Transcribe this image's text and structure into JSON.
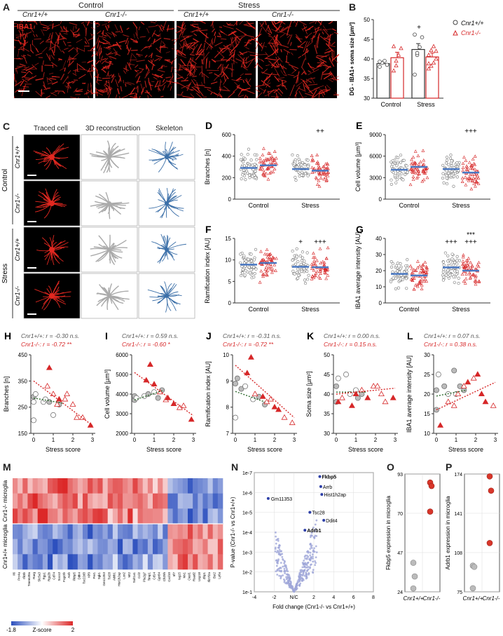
{
  "panel_letters": [
    "A",
    "B",
    "C",
    "D",
    "E",
    "F",
    "G",
    "H",
    "I",
    "J",
    "K",
    "L",
    "M",
    "N",
    "O",
    "P"
  ],
  "panelA": {
    "group_control": "Control",
    "group_stress": "Stress",
    "col_labels": [
      "Cnr1+/+",
      "Cnr1-/-",
      "Cnr1+/+",
      "Cnr1-/-"
    ],
    "stain_label": "IBA1"
  },
  "panelB": {
    "ylabel": "DG - IBA1+ soma size [µm²]",
    "yticks": [
      "30",
      "35",
      "40",
      "45",
      "50"
    ],
    "ylim": [
      30,
      50
    ],
    "categories": [
      "Control",
      "Stress"
    ],
    "legend": [
      "Cnr1+/+",
      "Cnr1-/-"
    ],
    "annot": "+",
    "chart_data": {
      "type": "bar",
      "categories": [
        "Control",
        "Stress"
      ],
      "series": [
        {
          "name": "Cnr1+/+",
          "values": [
            38.8,
            42.4
          ],
          "sem": [
            0.5,
            1.5
          ],
          "points": [
            [
              38,
              39,
              39.5,
              38.5,
              39.3
            ],
            [
              36,
              41,
              43,
              45.5,
              46.2,
              41.5
            ]
          ]
        },
        {
          "name": "Cnr1-/-",
          "values": [
            40.3,
            40.5
          ],
          "sem": [
            1.4,
            1.0
          ],
          "points": [
            [
              37,
              38.3,
              41,
              42.7,
              43.2,
              39.5
            ],
            [
              37.5,
              38.2,
              39,
              40,
              41,
              42.2,
              43.2,
              42,
              38.8
            ]
          ]
        }
      ],
      "ylabel": "DG - IBA1+ soma size [µm²]",
      "ylim": [
        30,
        50
      ]
    }
  },
  "panelC": {
    "headers": [
      "Traced cell",
      "3D reconstruction",
      "Skeleton"
    ],
    "groups": [
      "Control",
      "Stress"
    ],
    "row_labels": [
      "Cnr1+/+",
      "Cnr1-/-",
      "Cnr1+/+",
      "Cnr1-/-"
    ]
  },
  "scatterPanels": [
    {
      "id": "D",
      "ylabel": "Branches [n]",
      "yticks": [
        "0",
        "200",
        "400",
        "600"
      ],
      "ylim": [
        0,
        600
      ],
      "means": [
        290,
        315,
        280,
        265
      ],
      "annot_stress": "++",
      "annot_stress2": ""
    },
    {
      "id": "E",
      "ylabel": "Cell volume [µm³]",
      "yticks": [
        "0",
        "3000",
        "6000",
        "9000"
      ],
      "ylim": [
        0,
        9000
      ],
      "means": [
        4100,
        4500,
        4200,
        3700
      ],
      "annot_stress": "+++",
      "annot_stress2": ""
    },
    {
      "id": "F",
      "ylabel": "Ramification index [AU]",
      "yticks": [
        "0",
        "5",
        "10",
        "15"
      ],
      "ylim": [
        0,
        15
      ],
      "means": [
        8.9,
        9.3,
        8.4,
        8.3
      ],
      "annot_stress": "+",
      "annot_stress2": "+++"
    },
    {
      "id": "G",
      "ylabel": "IBA1 average intensity [AU]",
      "yticks": [
        "0",
        "10",
        "20",
        "30",
        "40"
      ],
      "ylim": [
        0,
        40
      ],
      "means": [
        18,
        17,
        22,
        20
      ],
      "annot_stress": "+++",
      "annot_stress2": "***\n+++"
    }
  ],
  "scatter_categories": [
    "Control",
    "Stress"
  ],
  "corrPanels": [
    {
      "id": "H",
      "wt": "Cnr1+/+: r = -0.30 n.s.",
      "ko": "Cnr1-/-: r = -0.72 **",
      "ylabel": "Branches [n]",
      "yticks": [
        "150",
        "250",
        "350",
        "450"
      ],
      "ylim": [
        150,
        450
      ],
      "wt_line": [
        [
          0,
          285
        ],
        [
          1.5,
          265
        ]
      ],
      "ko_line": [
        [
          0,
          350
        ],
        [
          3,
          180
        ]
      ],
      "wt_pts": [
        [
          0,
          200
        ],
        [
          0,
          270
        ],
        [
          0,
          290
        ],
        [
          0.1,
          300
        ],
        [
          0.5,
          270
        ],
        [
          0.6,
          280
        ],
        [
          0.8,
          270
        ],
        [
          1,
          220
        ],
        [
          1.3,
          260
        ]
      ],
      "ko_pts": [
        [
          0.7,
          330
        ],
        [
          0.8,
          400
        ],
        [
          1,
          300
        ],
        [
          1.2,
          260
        ],
        [
          1.3,
          280
        ],
        [
          1.6,
          280
        ],
        [
          1.7,
          300
        ],
        [
          2,
          260
        ],
        [
          2.2,
          210
        ],
        [
          2.5,
          210
        ],
        [
          2.9,
          180
        ]
      ]
    },
    {
      "id": "I",
      "wt": "Cnr1+/+: r = 0.59 n.s.",
      "ko": "Cnr1-/-: r = -0.60 *",
      "ylabel": "Cell volume [µm³]",
      "yticks": [
        "2000",
        "3000",
        "4000",
        "5000",
        "6000"
      ],
      "ylim": [
        2000,
        6000
      ],
      "wt_line": [
        [
          0,
          3700
        ],
        [
          1.5,
          4200
        ]
      ],
      "ko_line": [
        [
          0,
          5100
        ],
        [
          3,
          2900
        ]
      ],
      "wt_pts": [
        [
          0,
          3700
        ],
        [
          0,
          3900
        ],
        [
          0.1,
          3800
        ],
        [
          0.5,
          3900
        ],
        [
          0.7,
          4000
        ],
        [
          1,
          4100
        ],
        [
          1.2,
          3800
        ],
        [
          1.4,
          4200
        ]
      ],
      "ko_pts": [
        [
          0.6,
          4700
        ],
        [
          0.8,
          5500
        ],
        [
          1,
          4500
        ],
        [
          1.3,
          4100
        ],
        [
          1.6,
          3700
        ],
        [
          1.7,
          3800
        ],
        [
          2,
          3500
        ],
        [
          2.3,
          3300
        ],
        [
          2.5,
          3400
        ],
        [
          2.9,
          2700
        ]
      ]
    },
    {
      "id": "J",
      "wt": "Cnr1+/+: r = -0.31 n.s.",
      "ko": "Cnr1-/-: r = -0.72 **",
      "ylabel": "Ramification index [AU]",
      "yticks": [
        "7",
        "8",
        "9",
        "10"
      ],
      "ylim": [
        7,
        10
      ],
      "wt_line": [
        [
          0,
          8.6
        ],
        [
          1.5,
          8.2
        ]
      ],
      "ko_line": [
        [
          0,
          9.6
        ],
        [
          3,
          7.6
        ]
      ],
      "wt_pts": [
        [
          0,
          7.6
        ],
        [
          0,
          8.9
        ],
        [
          0.1,
          9.1
        ],
        [
          0.3,
          8.7
        ],
        [
          0.5,
          8.8
        ],
        [
          0.9,
          8.3
        ],
        [
          1.2,
          8.4
        ],
        [
          1.5,
          8.1
        ]
      ],
      "ko_pts": [
        [
          0.6,
          9.3
        ],
        [
          0.8,
          9.9
        ],
        [
          1,
          8.5
        ],
        [
          1.4,
          8.4
        ],
        [
          1.6,
          8.2
        ],
        [
          1.8,
          8.3
        ],
        [
          2,
          8.0
        ],
        [
          2.2,
          7.9
        ],
        [
          2.5,
          7.6
        ],
        [
          2.9,
          7.4
        ]
      ]
    },
    {
      "id": "K",
      "wt": "Cnr1+/+: r = 0.00 n.s.",
      "ko": "Cnr1-/-: r = 0.15 n.s.",
      "ylabel": "Soma size [µm²]",
      "yticks": [
        "30",
        "35",
        "40",
        "45",
        "50"
      ],
      "ylim": [
        30,
        50
      ],
      "wt_line": [
        [
          0,
          40.5
        ],
        [
          1.5,
          40.5
        ]
      ],
      "ko_line": [
        [
          0,
          40
        ],
        [
          3,
          41.5
        ]
      ],
      "wt_pts": [
        [
          0,
          38
        ],
        [
          0,
          42
        ],
        [
          0.1,
          44
        ],
        [
          0.5,
          45
        ],
        [
          0.7,
          40
        ],
        [
          1,
          41
        ],
        [
          1.1,
          39
        ],
        [
          1.3,
          40
        ]
      ],
      "ko_pts": [
        [
          0.1,
          38
        ],
        [
          0.3,
          39
        ],
        [
          0.8,
          37
        ],
        [
          1,
          40
        ],
        [
          1.3,
          41
        ],
        [
          1.6,
          39
        ],
        [
          1.9,
          42
        ],
        [
          2.1,
          42
        ],
        [
          2.3,
          40
        ],
        [
          2.5,
          38
        ],
        [
          2.9,
          39
        ]
      ]
    },
    {
      "id": "L",
      "wt": "Cnr1+/+: r = 0.07 n.s.",
      "ko": "Cnr1-/-: r = 0.38 n.s.",
      "ylabel": "IBA1 average intensity [AU]",
      "yticks": [
        "10",
        "15",
        "20",
        "25",
        "30"
      ],
      "ylim": [
        10,
        30
      ],
      "wt_line": [
        [
          0,
          19.5
        ],
        [
          1.5,
          21
        ]
      ],
      "ko_line": [
        [
          0,
          16
        ],
        [
          3,
          23
        ]
      ],
      "wt_pts": [
        [
          0,
          16
        ],
        [
          0,
          21
        ],
        [
          0.1,
          25
        ],
        [
          0.4,
          22
        ],
        [
          0.6,
          20
        ],
        [
          0.9,
          26
        ],
        [
          1,
          20
        ],
        [
          1.2,
          22
        ],
        [
          1.4,
          21
        ]
      ],
      "ko_pts": [
        [
          0.2,
          12
        ],
        [
          0.6,
          18
        ],
        [
          0.9,
          17
        ],
        [
          1.1,
          20
        ],
        [
          1.4,
          22
        ],
        [
          1.6,
          23
        ],
        [
          1.9,
          24
        ],
        [
          2.1,
          25
        ],
        [
          2.3,
          20
        ],
        [
          2.5,
          18
        ],
        [
          2.9,
          17
        ]
      ]
    }
  ],
  "corr_xlabel": "Stress score",
  "corr_xticks": [
    "0",
    "1",
    "2",
    "3"
  ],
  "panelM": {
    "row_group1": "Cnr1-/- microglia",
    "row_group2": "Cnr1+/+ microglia",
    "colorbar_label": "Z-score",
    "colorbar_min": "-1.8",
    "colorbar_max": "2",
    "genes": [
      "Il6",
      "Prc4a",
      "Ifit3b",
      "Tmem30a",
      "Rarg",
      "Slc5a3",
      "Rgs1",
      "Rgs2b",
      "Cd74",
      "Socs3",
      "Fcgr2b",
      "Arrb",
      "Fkbp5",
      "Ddit4",
      "Tsc22d3",
      "Klf9",
      "Per1",
      "Sgk1",
      "Gm11353",
      "Tst28",
      "Adrb1",
      "Hist1h2ap",
      "Lcn2",
      "Mt2",
      "Sult1a1",
      "Ccl2",
      "Pla2g7",
      "Timp1",
      "Cd14",
      "Gpr84",
      "Ch25h",
      "Cxcl10",
      "Irf7",
      "Isg15",
      "Mx1",
      "Oasl1",
      "Rsad2",
      "Usp18",
      "Zbp1",
      "Ifi27l2a",
      "Bst2",
      "Ly6a"
    ]
  },
  "panelN": {
    "ylabel": "P-value (Cnr1-/- vs Cnr1+/+)",
    "xlabel": "Fold change (Cnr1-/- vs Cnr1+/+)",
    "xticks": [
      "-4",
      "-2",
      "N/C",
      "2",
      "4",
      "6",
      "8"
    ],
    "yticks": [
      "1e-7",
      "1e-6",
      "1e-5",
      "1e-4",
      "1e-3",
      "1e-2",
      "1e-1"
    ],
    "labels": [
      "Fkbp5",
      "Arrb",
      "Hist1h2ap",
      "Gm11353",
      "Tsc28",
      "Ddit4",
      "Adrb1"
    ]
  },
  "panelO": {
    "ylabel": "Fkbp5 expression in microglia",
    "yticks": [
      "24",
      "47",
      "70",
      "93"
    ],
    "ylim": [
      24,
      93
    ],
    "categories": [
      "Cnr1+/+",
      "Cnr1-/-"
    ],
    "wt": [
      41,
      33,
      26
    ],
    "ko": [
      88,
      86,
      71
    ]
  },
  "panelP": {
    "ylabel": "Adrb1 expression in microglia",
    "yticks": [
      "75",
      "108",
      "141",
      "174"
    ],
    "ylim": [
      75,
      174
    ],
    "categories": [
      "Cnr1+/+",
      "Cnr1-/-"
    ],
    "wt": [
      97,
      96,
      78
    ],
    "ko": [
      172,
      160,
      116
    ]
  },
  "colors": {
    "wt": "#888888",
    "ko": "#d62728",
    "mean": "#4a78c2",
    "micro": "#e22820"
  }
}
